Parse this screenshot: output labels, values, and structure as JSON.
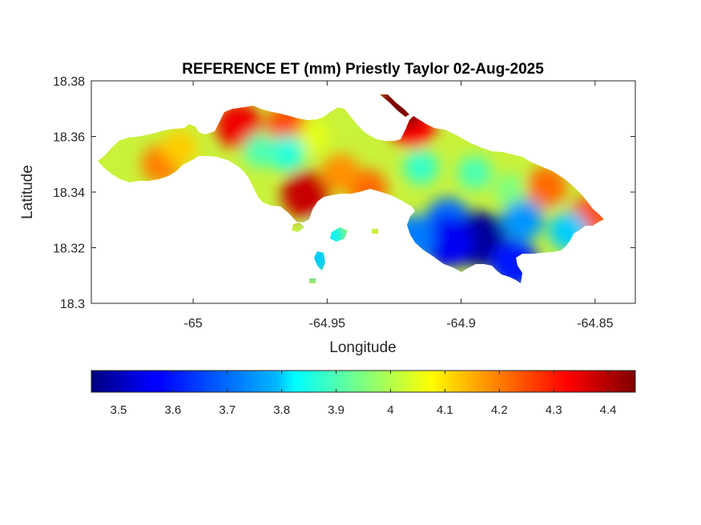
{
  "chart_data": {
    "type": "heatmap",
    "title": "REFERENCE ET (mm) Priestly Taylor 02-Aug-2025",
    "xlabel": "Longitude",
    "ylabel": "Latitude",
    "xlim": [
      -65.038,
      -64.835
    ],
    "ylim": [
      18.3,
      18.38
    ],
    "xticks": [
      -65,
      -64.95,
      -64.9,
      -64.85
    ],
    "xtick_labels": [
      "-65",
      "-64.95",
      "-64.9",
      "-64.85"
    ],
    "yticks": [
      18.3,
      18.32,
      18.34,
      18.36,
      18.38
    ],
    "ytick_labels": [
      "18.3",
      "18.32",
      "18.34",
      "18.36",
      "18.38"
    ],
    "grid": false,
    "colormap": "jet",
    "colorbar": {
      "location": "bottom",
      "range": [
        3.45,
        4.45
      ],
      "ticks": [
        3.5,
        3.6,
        3.7,
        3.8,
        3.9,
        4.0,
        4.1,
        4.2,
        4.3,
        4.4
      ],
      "tick_labels": [
        "3.5",
        "3.6",
        "3.7",
        "3.8",
        "3.9",
        "4",
        "4.1",
        "4.2",
        "4.3",
        "4.4"
      ]
    },
    "hotspots": [
      {
        "lon": -64.983,
        "lat": 18.364,
        "value": 4.34
      },
      {
        "lon": -64.965,
        "lat": 18.364,
        "value": 4.25
      },
      {
        "lon": -64.958,
        "lat": 18.339,
        "value": 4.38
      },
      {
        "lon": -64.935,
        "lat": 18.341,
        "value": 4.22
      },
      {
        "lon": -64.918,
        "lat": 18.364,
        "value": 4.32
      },
      {
        "lon": -64.922,
        "lat": 18.372,
        "value": 4.45
      },
      {
        "lon": -65.012,
        "lat": 18.35,
        "value": 4.2
      },
      {
        "lon": -64.868,
        "lat": 18.342,
        "value": 4.22
      },
      {
        "lon": -64.852,
        "lat": 18.331,
        "value": 4.25
      },
      {
        "lon": -64.945,
        "lat": 18.347,
        "value": 4.18
      },
      {
        "lon": -65.005,
        "lat": 18.356,
        "value": 4.12
      },
      {
        "lon": -64.955,
        "lat": 18.36,
        "value": 4.05
      },
      {
        "lon": -64.965,
        "lat": 18.354,
        "value": 3.86
      },
      {
        "lon": -64.975,
        "lat": 18.355,
        "value": 3.9
      },
      {
        "lon": -64.915,
        "lat": 18.349,
        "value": 3.88
      },
      {
        "lon": -64.905,
        "lat": 18.33,
        "value": 3.7
      },
      {
        "lon": -64.893,
        "lat": 18.323,
        "value": 3.47
      },
      {
        "lon": -64.905,
        "lat": 18.322,
        "value": 3.55
      },
      {
        "lon": -64.88,
        "lat": 18.314,
        "value": 3.6
      },
      {
        "lon": -64.918,
        "lat": 18.324,
        "value": 3.72
      },
      {
        "lon": -64.877,
        "lat": 18.33,
        "value": 3.75
      },
      {
        "lon": -64.882,
        "lat": 18.341,
        "value": 3.95
      },
      {
        "lon": -64.895,
        "lat": 18.347,
        "value": 3.9
      },
      {
        "lon": -64.86,
        "lat": 18.326,
        "value": 3.8
      },
      {
        "lon": -64.95,
        "lat": 18.324,
        "value": 3.82
      },
      {
        "lon": -64.955,
        "lat": 18.316,
        "value": 3.8
      }
    ]
  }
}
